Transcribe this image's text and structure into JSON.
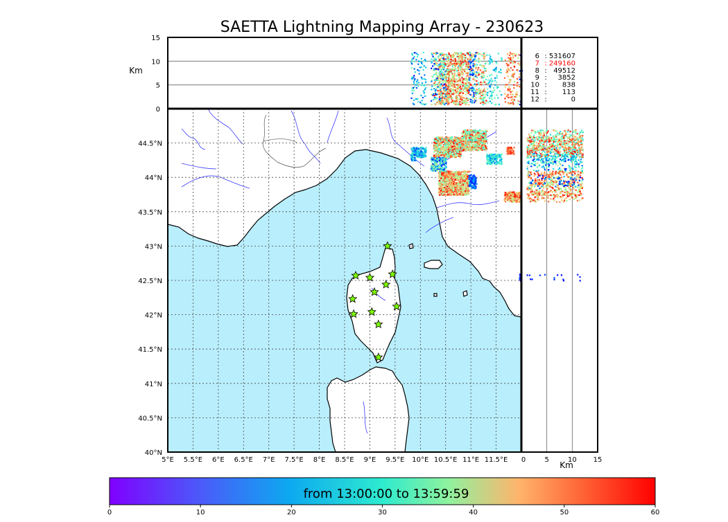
{
  "chart_data": {
    "type": "scatter",
    "title": "SAETTA Lightning Mapping Array - 230623",
    "colorbar": {
      "label": "from 13:00:00 to 13:59:59",
      "ticks": [
        "0",
        "10",
        "20",
        "30",
        "40",
        "50",
        "60"
      ],
      "range": [
        0,
        60
      ],
      "colormap": "rainbow"
    },
    "map": {
      "lon_range": [
        5,
        12
      ],
      "lat_range": [
        40,
        45
      ],
      "lon_ticks": [
        "5°E",
        "5.5°E",
        "6°E",
        "6.5°E",
        "7°E",
        "7.5°E",
        "8°E",
        "8.5°E",
        "9°E",
        "9.5°E",
        "10°E",
        "10.5°E",
        "11°E",
        "11.5°E"
      ],
      "lat_ticks": [
        "40°N",
        "40.5°N",
        "41°N",
        "41.5°N",
        "42°N",
        "42.5°N",
        "43°N",
        "43.5°N",
        "44°N",
        "44.5°N"
      ],
      "sea_color": "#b9eefc",
      "grid": "dotted"
    },
    "top_panel": {
      "ylabel": "Km",
      "yticks": [
        "0",
        "5",
        "10",
        "15"
      ],
      "y_range": [
        0,
        15
      ]
    },
    "side_panel": {
      "xlabel": "Km",
      "xticks": [
        "0",
        "5",
        "10",
        "15"
      ],
      "x_range": [
        0,
        15
      ]
    },
    "station_counts": [
      {
        "stations": "6",
        "count": "531607",
        "color": "#000000"
      },
      {
        "stations": "7",
        "count": "249160",
        "color": "#ff0000"
      },
      {
        "stations": "8",
        "count": "49512",
        "color": "#000000"
      },
      {
        "stations": "9",
        "count": "3852",
        "color": "#000000"
      },
      {
        "stations": "10",
        "count": "838",
        "color": "#000000"
      },
      {
        "stations": "11",
        "count": "113",
        "color": "#000000"
      },
      {
        "stations": "12",
        "count": "0",
        "color": "#000000"
      }
    ],
    "stations": [
      {
        "lon": 9.35,
        "lat": 43.0
      },
      {
        "lon": 8.72,
        "lat": 42.57
      },
      {
        "lon": 9.0,
        "lat": 42.54
      },
      {
        "lon": 9.45,
        "lat": 42.59
      },
      {
        "lon": 9.32,
        "lat": 42.44
      },
      {
        "lon": 9.09,
        "lat": 42.33
      },
      {
        "lon": 8.66,
        "lat": 42.23
      },
      {
        "lon": 9.53,
        "lat": 42.12
      },
      {
        "lon": 8.68,
        "lat": 42.01
      },
      {
        "lon": 9.04,
        "lat": 42.04
      },
      {
        "lon": 9.17,
        "lat": 41.86
      },
      {
        "lon": 9.17,
        "lat": 41.38
      }
    ],
    "lightning_clusters": [
      {
        "lon_range": [
          9.8,
          9.9
        ],
        "lat_range": [
          44.25,
          44.45
        ],
        "color_range": [
          0,
          30
        ]
      },
      {
        "lon_range": [
          9.9,
          10.1
        ],
        "lat_range": [
          44.3,
          44.45
        ],
        "color_range": [
          5,
          25
        ]
      },
      {
        "lon_range": [
          10.25,
          10.8
        ],
        "lat_range": [
          44.3,
          44.6
        ],
        "color_range": [
          20,
          60
        ]
      },
      {
        "lon_range": [
          10.8,
          11.3
        ],
        "lat_range": [
          44.4,
          44.7
        ],
        "color_range": [
          20,
          60
        ]
      },
      {
        "lon_range": [
          10.35,
          10.95
        ],
        "lat_range": [
          43.75,
          44.1
        ],
        "color_range": [
          30,
          60
        ]
      },
      {
        "lon_range": [
          10.2,
          10.5
        ],
        "lat_range": [
          44.1,
          44.3
        ],
        "color_range": [
          0,
          40
        ]
      },
      {
        "lon_range": [
          10.95,
          11.1
        ],
        "lat_range": [
          43.85,
          44.05
        ],
        "color_range": [
          0,
          15
        ]
      },
      {
        "lon_range": [
          11.3,
          11.6
        ],
        "lat_range": [
          44.2,
          44.35
        ],
        "color_range": [
          10,
          30
        ]
      },
      {
        "lon_range": [
          11.7,
          11.85
        ],
        "lat_range": [
          44.35,
          44.45
        ],
        "color_range": [
          45,
          60
        ]
      },
      {
        "lon_range": [
          11.65,
          12.0
        ],
        "lat_range": [
          43.65,
          43.8
        ],
        "color_range": [
          35,
          60
        ]
      },
      {
        "lon_range": [
          11.95,
          12.0
        ],
        "lat_range": [
          42.5,
          42.6
        ],
        "color_range": [
          0,
          5
        ]
      }
    ]
  }
}
